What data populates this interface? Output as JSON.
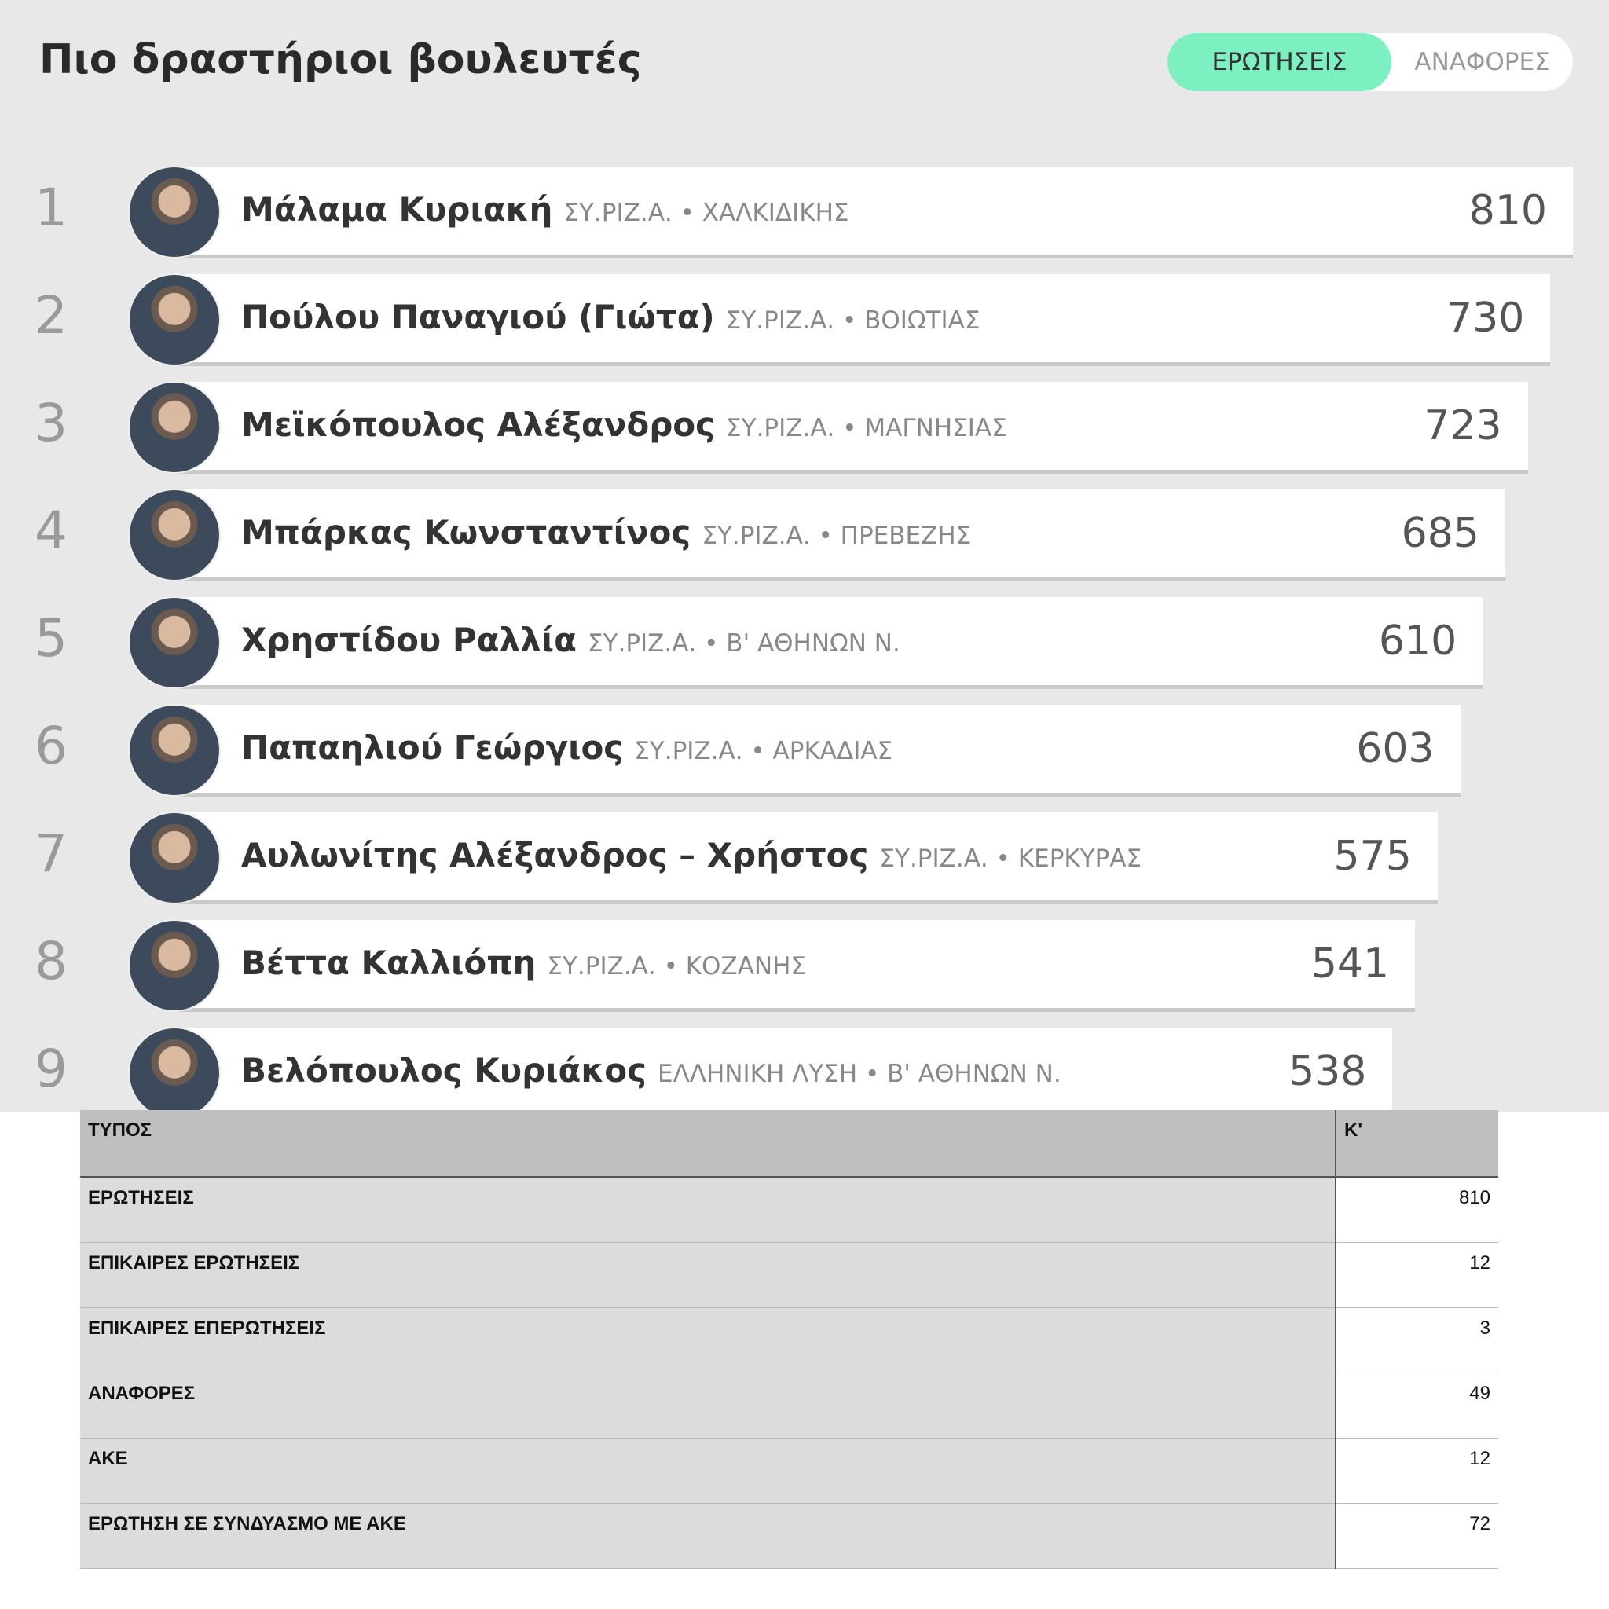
{
  "header": {
    "title": "Πιο δραστήριοι βουλευτές",
    "tabs": [
      "ΕΡΩΤΗΣΕΙΣ",
      "ΑΝΑΦΟΡΕΣ"
    ]
  },
  "ranking": [
    {
      "rank": "1",
      "name": "Μάλαμα Κυριακή",
      "affiliation": "ΣΥ.ΡΙΖ.Α. • ΧΑΛΚΙΔΙΚΗΣ",
      "count": "810"
    },
    {
      "rank": "2",
      "name": "Πούλου Παναγιού (Γιώτα)",
      "affiliation": "ΣΥ.ΡΙΖ.Α. • ΒΟΙΩΤΙΑΣ",
      "count": "730"
    },
    {
      "rank": "3",
      "name": "Μεϊκόπουλος Αλέξανδρος",
      "affiliation": "ΣΥ.ΡΙΖ.Α. • ΜΑΓΝΗΣΙΑΣ",
      "count": "723"
    },
    {
      "rank": "4",
      "name": "Μπάρκας Κωνσταντίνος",
      "affiliation": "ΣΥ.ΡΙΖ.Α. • ΠΡΕΒΕΖΗΣ",
      "count": "685"
    },
    {
      "rank": "5",
      "name": "Χρηστίδου Ραλλία",
      "affiliation": "ΣΥ.ΡΙΖ.Α. • Β' ΑΘΗΝΩΝ Ν.",
      "count": "610"
    },
    {
      "rank": "6",
      "name": "Παπαηλιού Γεώργιος",
      "affiliation": "ΣΥ.ΡΙΖ.Α. • ΑΡΚΑΔΙΑΣ",
      "count": "603"
    },
    {
      "rank": "7",
      "name": "Αυλωνίτης Αλέξανδρος – Χρήστος",
      "affiliation": "ΣΥ.ΡΙΖ.Α. • ΚΕΡΚΥΡΑΣ",
      "count": "575"
    },
    {
      "rank": "8",
      "name": "Βέττα Καλλιόπη",
      "affiliation": "ΣΥ.ΡΙΖ.Α. • ΚΟΖΑΝΗΣ",
      "count": "541"
    },
    {
      "rank": "9",
      "name": "Βελόπουλος Κυριάκος",
      "affiliation": "ΕΛΛΗΝΙΚΗ ΛΥΣΗ • Β' ΑΘΗΝΩΝ Ν.",
      "count": "538"
    }
  ],
  "table": {
    "header": [
      "ΤΥΠΟΣ",
      "Κ'"
    ],
    "rows": [
      [
        "ΕΡΩΤΗΣΕΙΣ",
        "810"
      ],
      [
        "ΕΠΙΚΑΙΡΕΣ ΕΡΩΤΗΣΕΙΣ",
        "12"
      ],
      [
        "ΕΠΙΚΑΙΡΕΣ ΕΠΕΡΩΤΗΣΕΙΣ",
        "3"
      ],
      [
        "ΑΝΑΦΟΡΕΣ",
        "49"
      ],
      [
        "ΑΚΕ",
        "12"
      ],
      [
        "ΕΡΩΤΗΣΗ ΣΕ ΣΥΝΔΥΑΣΜΟ ΜΕ ΑΚΕ",
        "72"
      ]
    ]
  }
}
